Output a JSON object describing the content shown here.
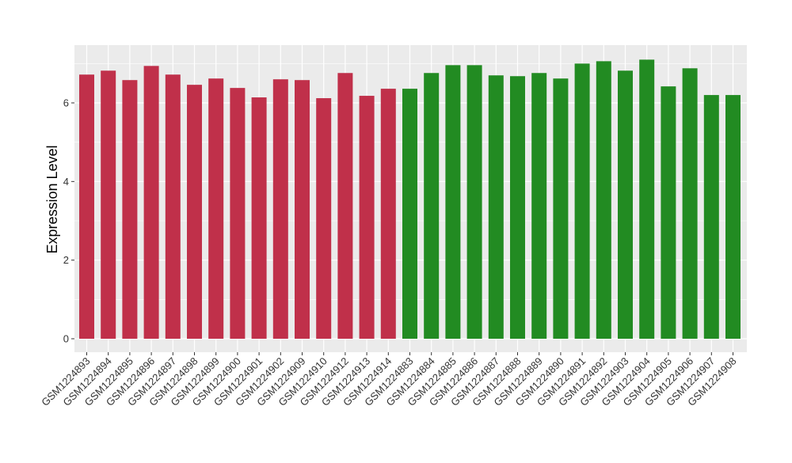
{
  "chart_data": {
    "type": "bar",
    "title": "",
    "xlabel": "",
    "ylabel": "Expression Level",
    "ylim": [
      0,
      7.35
    ],
    "yticks": [
      0,
      2,
      4,
      6
    ],
    "ytick_labels": [
      "0",
      "2",
      "4",
      "6"
    ],
    "grid": true,
    "categories": [
      "GSM1224893",
      "GSM1224894",
      "GSM1224895",
      "GSM1224896",
      "GSM1224897",
      "GSM1224898",
      "GSM1224899",
      "GSM1224900",
      "GSM1224901",
      "GSM1224902",
      "GSM1224909",
      "GSM1224910",
      "GSM1224912",
      "GSM1224913",
      "GSM1224914",
      "GSM1224883",
      "GSM1224884",
      "GSM1224885",
      "GSM1224886",
      "GSM1224887",
      "GSM1224888",
      "GSM1224889",
      "GSM1224890",
      "GSM1224891",
      "GSM1224892",
      "GSM1224903",
      "GSM1224904",
      "GSM1224905",
      "GSM1224906",
      "GSM1224907",
      "GSM1224908"
    ],
    "values": [
      6.72,
      6.82,
      6.58,
      6.94,
      6.72,
      6.46,
      6.62,
      6.38,
      6.14,
      6.6,
      6.58,
      6.12,
      6.76,
      6.18,
      6.36,
      6.36,
      6.76,
      6.96,
      6.96,
      6.7,
      6.68,
      6.76,
      6.62,
      7.0,
      7.06,
      6.82,
      7.1,
      6.42,
      6.88,
      6.2,
      6.2
    ],
    "group_counts": [
      15,
      16
    ],
    "colors": [
      "#c0304a",
      "#228b22"
    ],
    "panel_background": "#ebebeb",
    "gridline_color": "#ffffff"
  }
}
